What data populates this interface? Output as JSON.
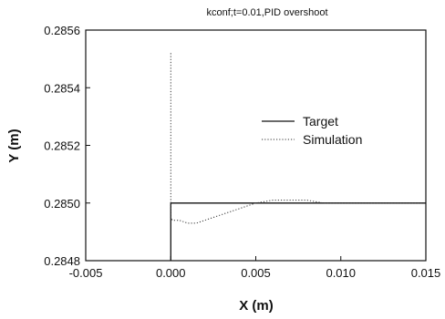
{
  "chart_data": {
    "type": "line",
    "title": "kconf;t=0.01,PID overshoot",
    "xlabel": "X (m)",
    "ylabel": "Y (m)",
    "xlim": [
      -0.005,
      0.015
    ],
    "ylim": [
      0.2848,
      0.2856
    ],
    "xticks": [
      "-0.005",
      "0.000",
      "0.005",
      "0.010",
      "0.015"
    ],
    "yticks": [
      "0.2848",
      "0.2850",
      "0.2852",
      "0.2854",
      "0.2856"
    ],
    "grid": false,
    "legend_position": "center-right",
    "series": [
      {
        "name": "Target",
        "style": "solid",
        "color": "#111111",
        "x": [
          0.0,
          0.0,
          0.015
        ],
        "y": [
          0.2848,
          0.285,
          0.285
        ]
      },
      {
        "name": "Simulation",
        "style": "dotted",
        "color": "#333333",
        "x": [
          0.0,
          0.0,
          0.0001,
          0.0005,
          0.001,
          0.0015,
          0.002,
          0.003,
          0.004,
          0.005,
          0.006,
          0.007,
          0.008,
          0.009,
          0.01,
          0.012,
          0.015
        ],
        "y": [
          0.28552,
          0.28495,
          0.28494,
          0.28494,
          0.28493,
          0.28493,
          0.28494,
          0.28496,
          0.28498,
          0.285,
          0.28501,
          0.28501,
          0.28501,
          0.285,
          0.285,
          0.285,
          0.285
        ]
      }
    ]
  }
}
